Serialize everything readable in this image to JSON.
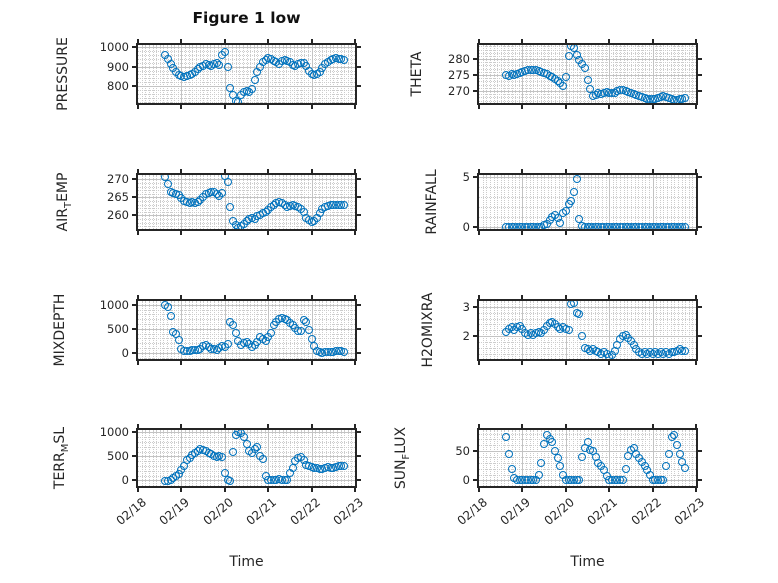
{
  "figure": {
    "title": "Figure 1 low",
    "xlabel": "Time",
    "marker_color": "#0072BD",
    "axis_color": "#252525",
    "xlim": [
      0,
      5
    ],
    "xtick_labels": [
      "02/18",
      "02/19",
      "02/20",
      "02/21",
      "02/22",
      "02/23"
    ]
  },
  "x_days": [
    0.625,
    0.6875,
    0.75,
    0.8125,
    0.875,
    0.9375,
    1.0,
    1.0625,
    1.125,
    1.1875,
    1.25,
    1.3125,
    1.375,
    1.4375,
    1.5,
    1.5625,
    1.625,
    1.6875,
    1.75,
    1.8125,
    1.875,
    1.9375,
    2.0,
    2.0625,
    2.125,
    2.1875,
    2.25,
    2.3125,
    2.375,
    2.4375,
    2.5,
    2.5625,
    2.625,
    2.6875,
    2.75,
    2.8125,
    2.875,
    2.9375,
    3.0,
    3.0625,
    3.125,
    3.1875,
    3.25,
    3.3125,
    3.375,
    3.4375,
    3.5,
    3.5625,
    3.625,
    3.6875,
    3.75,
    3.8125,
    3.875,
    3.9375,
    4.0,
    4.0625,
    4.125,
    4.1875,
    4.25,
    4.3125,
    4.375,
    4.4375,
    4.5,
    4.5625,
    4.625,
    4.6875,
    4.75
  ],
  "chart_data": [
    {
      "type": "scatter",
      "id": "pressure",
      "ylabel": {
        "pre": "PRESSURE",
        "sub": "",
        "post": ""
      },
      "yticks": [
        800,
        900,
        1000
      ],
      "ylim": [
        714,
        1010
      ],
      "values": [
        958,
        938,
        912,
        895,
        872,
        858,
        850,
        848,
        852,
        856,
        862,
        875,
        888,
        898,
        905,
        912,
        908,
        905,
        912,
        918,
        910,
        960,
        975,
        900,
        790,
        755,
        722,
        718,
        755,
        768,
        778,
        772,
        788,
        830,
        872,
        900,
        922,
        935,
        942,
        938,
        930,
        922,
        915,
        928,
        935,
        930,
        922,
        908,
        902,
        912,
        920,
        918,
        905,
        880,
        862,
        855,
        862,
        872,
        895,
        912,
        925,
        932,
        938,
        942,
        940,
        938,
        936
      ]
    },
    {
      "type": "scatter",
      "id": "theta",
      "ylabel": {
        "pre": "THETA",
        "sub": "",
        "post": ""
      },
      "yticks": [
        270,
        275,
        280
      ],
      "ylim": [
        266.2,
        284.4
      ],
      "values": [
        275.0,
        274.8,
        275.2,
        275.0,
        275.3,
        275.6,
        276.0,
        276.4,
        276.6,
        276.7,
        276.5,
        276.6,
        276.3,
        276.0,
        275.6,
        275.2,
        274.8,
        274.3,
        273.8,
        273.2,
        272.6,
        271.4,
        274.5,
        280.9,
        284.0,
        283.4,
        281.2,
        279.6,
        278.3,
        277.2,
        273.4,
        270.6,
        268.4,
        268.8,
        269.2,
        269.0,
        269.3,
        269.6,
        269.4,
        269.2,
        269.5,
        269.9,
        270.2,
        270.4,
        270.1,
        269.7,
        269.3,
        268.9,
        268.6,
        268.3,
        268.0,
        267.8,
        267.6,
        267.5,
        267.4,
        267.6,
        267.9,
        268.2,
        268.3,
        268.1,
        267.8,
        267.5,
        267.3,
        267.2,
        267.4,
        267.6,
        267.8
      ]
    },
    {
      "type": "scatter",
      "id": "air_temp",
      "ylabel": {
        "pre": "AIR",
        "sub": "T",
        "post": "EMP"
      },
      "yticks": [
        260,
        265,
        270
      ],
      "ylim": [
        256.2,
        271.2
      ],
      "values": [
        270.7,
        268.8,
        266.6,
        266.2,
        265.8,
        265.6,
        264.8,
        264.0,
        263.6,
        263.4,
        263.6,
        263.5,
        263.8,
        264.4,
        265.2,
        265.9,
        266.3,
        266.5,
        266.4,
        266.0,
        265.4,
        266.2,
        270.8,
        269.3,
        262.3,
        258.4,
        257.2,
        256.6,
        257.0,
        257.6,
        258.3,
        258.9,
        259.4,
        259.1,
        259.8,
        260.2,
        260.6,
        261.0,
        261.5,
        262.2,
        262.9,
        263.4,
        263.7,
        263.3,
        262.8,
        262.4,
        262.6,
        262.9,
        262.5,
        262.2,
        261.8,
        260.8,
        259.4,
        258.6,
        258.1,
        258.4,
        259.2,
        260.6,
        261.8,
        262.4,
        262.7,
        262.8,
        262.8,
        262.9,
        262.9,
        263.0,
        263.0
      ]
    },
    {
      "type": "scatter",
      "id": "rainfall",
      "ylabel": {
        "pre": "RAINFALL",
        "sub": "",
        "post": ""
      },
      "yticks": [
        0,
        5
      ],
      "ylim": [
        -0.25,
        5.2
      ],
      "values": [
        0,
        0,
        0,
        0,
        0,
        0,
        0,
        0,
        0,
        0,
        0,
        0,
        0,
        0,
        0.15,
        0.3,
        0.7,
        1.0,
        1.15,
        0.9,
        0.4,
        1.4,
        1.6,
        2.3,
        2.55,
        3.5,
        4.8,
        0.75,
        0.1,
        0,
        0,
        0,
        0,
        0,
        0,
        0,
        0,
        0,
        0,
        0,
        0,
        0,
        0,
        0,
        0,
        0,
        0,
        0,
        0,
        0,
        0,
        0,
        0,
        0,
        0,
        0,
        0,
        0,
        0,
        0,
        0,
        0,
        0,
        0,
        0,
        0,
        0
      ]
    },
    {
      "type": "scatter",
      "id": "mixdepth",
      "ylabel": {
        "pre": "MIXDEPTH",
        "sub": "",
        "post": ""
      },
      "yticks": [
        0,
        500,
        1000
      ],
      "ylim": [
        -130,
        1080
      ],
      "values": [
        1000,
        950,
        770,
        430,
        390,
        270,
        80,
        45,
        30,
        40,
        55,
        65,
        50,
        90,
        140,
        160,
        120,
        90,
        70,
        60,
        110,
        150,
        130,
        180,
        640,
        590,
        420,
        240,
        160,
        200,
        230,
        180,
        120,
        160,
        230,
        320,
        280,
        240,
        330,
        420,
        580,
        640,
        700,
        720,
        700,
        680,
        620,
        580,
        520,
        450,
        450,
        680,
        650,
        480,
        280,
        140,
        40,
        10,
        5,
        8,
        10,
        15,
        25,
        40,
        45,
        30,
        20
      ]
    },
    {
      "type": "scatter",
      "id": "h2omixra",
      "ylabel": {
        "pre": "H2OMIXRA",
        "sub": "",
        "post": ""
      },
      "yticks": [
        2,
        3
      ],
      "ylim": [
        1.22,
        3.2
      ],
      "values": [
        2.15,
        2.25,
        2.3,
        2.2,
        2.3,
        2.35,
        2.25,
        2.1,
        2.05,
        2.1,
        2.05,
        2.1,
        2.15,
        2.1,
        2.2,
        2.35,
        2.45,
        2.5,
        2.4,
        2.3,
        2.25,
        2.3,
        2.25,
        2.2,
        3.1,
        3.15,
        2.8,
        2.75,
        2.0,
        1.6,
        1.55,
        1.5,
        1.55,
        1.5,
        1.45,
        1.4,
        1.45,
        1.4,
        1.3,
        1.35,
        1.5,
        1.7,
        1.9,
        2.0,
        2.05,
        1.95,
        1.85,
        1.7,
        1.55,
        1.45,
        1.4,
        1.45,
        1.4,
        1.45,
        1.4,
        1.45,
        1.4,
        1.45,
        1.4,
        1.45,
        1.4,
        1.45,
        1.45,
        1.5,
        1.55,
        1.5,
        1.5
      ]
    },
    {
      "type": "scatter",
      "id": "terr_msl",
      "ylabel": {
        "pre": "TERR",
        "sub": "M",
        "post": "SL"
      },
      "yticks": [
        0,
        500,
        1000
      ],
      "ylim": [
        -115,
        1045
      ],
      "values": [
        -20,
        -10,
        0,
        50,
        90,
        140,
        210,
        300,
        420,
        460,
        520,
        570,
        620,
        650,
        640,
        610,
        570,
        540,
        510,
        490,
        510,
        480,
        150,
        20,
        -20,
        600,
        950,
        1000,
        980,
        900,
        750,
        620,
        560,
        650,
        700,
        500,
        450,
        100,
        20,
        5,
        0,
        5,
        30,
        10,
        5,
        20,
        150,
        250,
        400,
        460,
        480,
        430,
        330,
        290,
        270,
        260,
        250,
        240,
        230,
        250,
        270,
        260,
        250,
        270,
        290,
        310,
        300
      ]
    },
    {
      "type": "scatter",
      "id": "sun_flux",
      "ylabel": {
        "pre": "SUN",
        "sub": "F",
        "post": "LUX"
      },
      "yticks": [
        0,
        50
      ],
      "ylim": [
        -9.5,
        86
      ],
      "values": [
        75,
        45,
        20,
        5,
        0,
        0,
        0,
        0,
        0,
        0,
        0,
        0,
        10,
        30,
        62,
        78,
        70,
        65,
        50,
        38,
        25,
        10,
        0,
        0,
        0,
        0,
        0,
        0,
        40,
        55,
        65,
        52,
        50,
        40,
        30,
        25,
        18,
        8,
        0,
        0,
        0,
        0,
        0,
        0,
        20,
        42,
        52,
        55,
        45,
        38,
        32,
        25,
        18,
        10,
        0,
        0,
        0,
        0,
        0,
        25,
        45,
        75,
        78,
        60,
        45,
        32,
        22
      ]
    }
  ]
}
